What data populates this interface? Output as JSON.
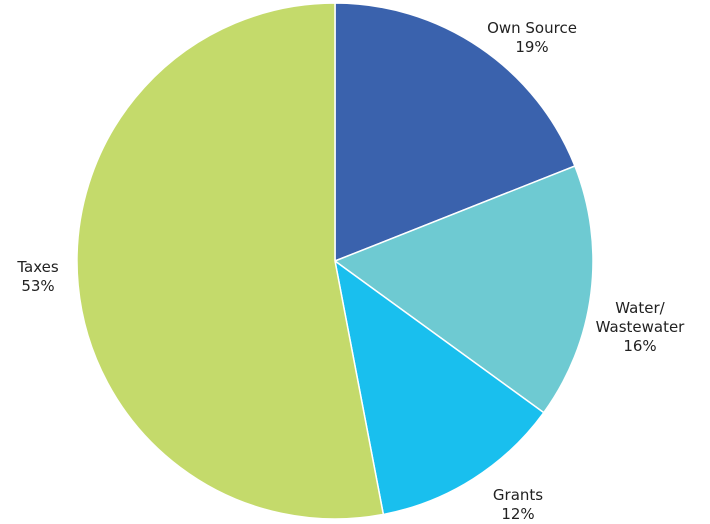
{
  "chart_data": {
    "type": "pie",
    "title": "",
    "start_angle_deg": 0,
    "direction": "clockwise",
    "slices": [
      {
        "label": "Own Source",
        "label_lines": [
          "Own Source"
        ],
        "value": 19,
        "value_text": "19%",
        "color": "#3a62ad"
      },
      {
        "label": "Water/ Wastewater",
        "label_lines": [
          "Water/",
          "Wastewater"
        ],
        "value": 16,
        "value_text": "16%",
        "color": "#6ecad2"
      },
      {
        "label": "Grants",
        "label_lines": [
          "Grants"
        ],
        "value": 12,
        "value_text": "12%",
        "color": "#19bfee"
      },
      {
        "label": "Taxes",
        "label_lines": [
          "Taxes"
        ],
        "value": 53,
        "value_text": "53%",
        "color": "#c4da6b"
      }
    ]
  }
}
